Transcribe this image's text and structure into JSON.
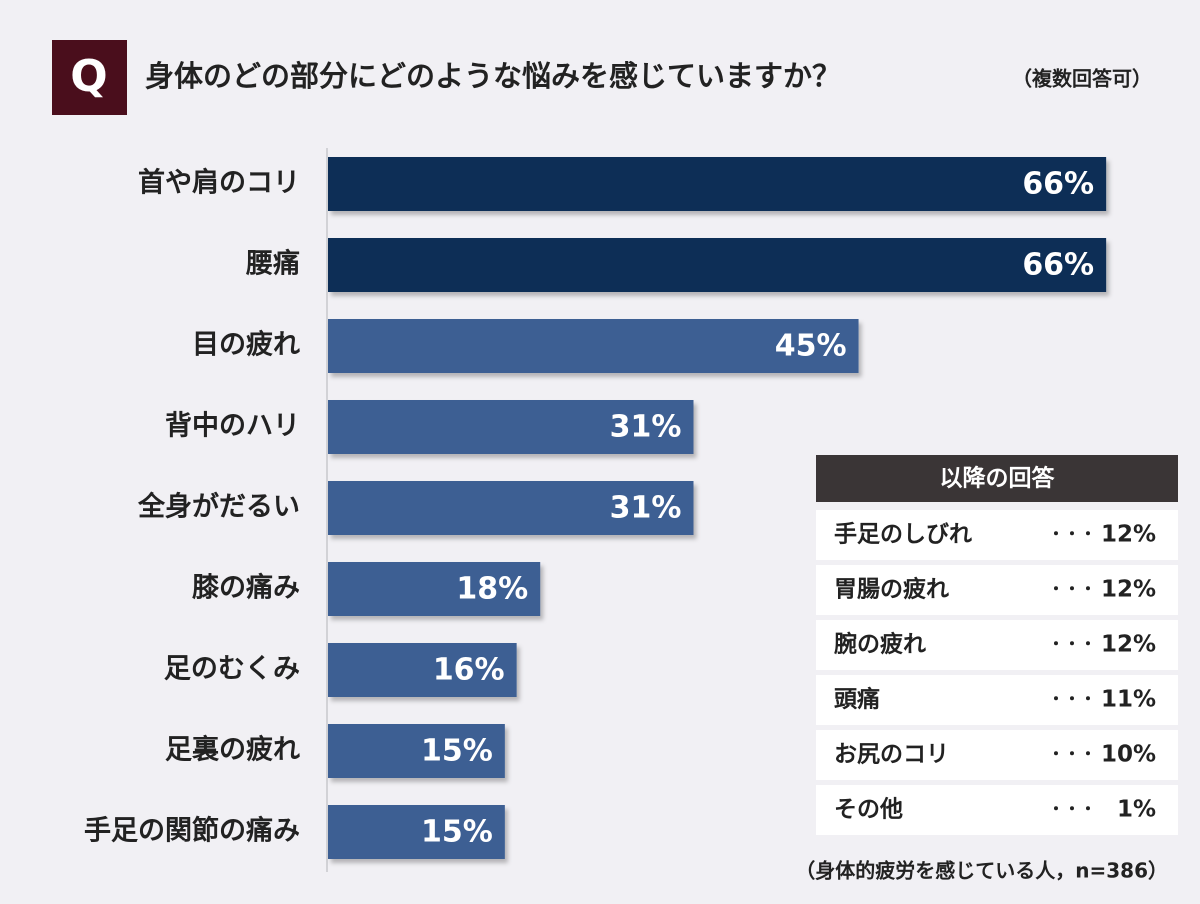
{
  "chart_data": {
    "type": "bar",
    "orientation": "horizontal",
    "badge": "Q",
    "title": "身体のどの部分にどのような悩みを感じていますか？",
    "subtitle": "（複数回答可）",
    "categories": [
      "首や肩のコリ",
      "腰痛",
      "目の疲れ",
      "背中のハリ",
      "全身がだるい",
      "膝の痛み",
      "足のむくみ",
      "足裏の疲れ",
      "手足の関節の痛み"
    ],
    "values": [
      66,
      66,
      45,
      31,
      31,
      18,
      16,
      15,
      15
    ],
    "value_labels": [
      "66%",
      "66%",
      "45%",
      "31%",
      "31%",
      "18%",
      "16%",
      "15%",
      "15%"
    ],
    "colors": [
      "#0f2d57",
      "#0f2d57",
      "#3c5e93",
      "#3c5e93",
      "#3c5e93",
      "#3c5e93",
      "#3c5e93",
      "#3c5e93",
      "#3c5e93"
    ],
    "note": "（身体的疲労を感じている人，n=386）"
  },
  "other_answers": {
    "title": "以降の回答",
    "separator": "・・・",
    "rows": [
      {
        "label": "手足のしびれ",
        "value": "12%"
      },
      {
        "label": "胃腸の疲れ",
        "value": "12%"
      },
      {
        "label": "腕の疲れ",
        "value": "12%"
      },
      {
        "label": "頭痛",
        "value": "11%"
      },
      {
        "label": "お尻のコリ",
        "value": "10%"
      },
      {
        "label": "その他",
        "value": "1%"
      }
    ]
  }
}
